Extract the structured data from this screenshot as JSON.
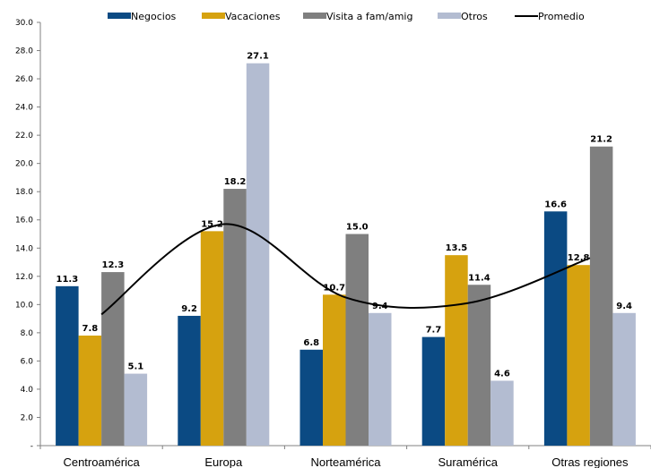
{
  "chart_data": {
    "type": "bar",
    "categories": [
      "Centroamérica",
      "Europa",
      "Norteamérica",
      "Suramérica",
      "Otras regiones"
    ],
    "series": [
      {
        "name": "Negocios",
        "color": "#0b4a83",
        "values": [
          11.3,
          9.2,
          6.8,
          7.7,
          16.6
        ],
        "labels": [
          "11.3",
          "9.2",
          "6.8",
          "7.7",
          "16.6"
        ]
      },
      {
        "name": "Vacaciones",
        "color": "#d6a20f",
        "values": [
          7.8,
          15.2,
          10.7,
          13.5,
          12.8
        ],
        "labels": [
          "7.8",
          "15.2",
          "10.7",
          "13.5",
          "12.8"
        ]
      },
      {
        "name": "Visita a fam/amig",
        "color": "#7f7f7f",
        "values": [
          12.3,
          18.2,
          15.0,
          11.4,
          21.2
        ],
        "labels": [
          "12.3",
          "18.2",
          "15.0",
          "11.4",
          "21.2"
        ]
      },
      {
        "name": "Otros",
        "color": "#b3bcd1",
        "values": [
          5.1,
          27.1,
          9.4,
          4.6,
          9.4
        ],
        "labels": [
          "5.1",
          "27.1",
          "9.4",
          "4.6",
          "9.4"
        ]
      }
    ],
    "line_series": {
      "name": "Promedio",
      "color": "#000000",
      "values": [
        9.3,
        15.7,
        10.5,
        10.1,
        13.3
      ]
    },
    "ylim": [
      0,
      30
    ],
    "yticks": [
      "-",
      "2.0",
      "4.0",
      "6.0",
      "8.0",
      "10.0",
      "12.0",
      "14.0",
      "16.0",
      "18.0",
      "20.0",
      "22.0",
      "24.0",
      "26.0",
      "28.0",
      "30.0"
    ],
    "grid": false,
    "legend_position": "top"
  }
}
